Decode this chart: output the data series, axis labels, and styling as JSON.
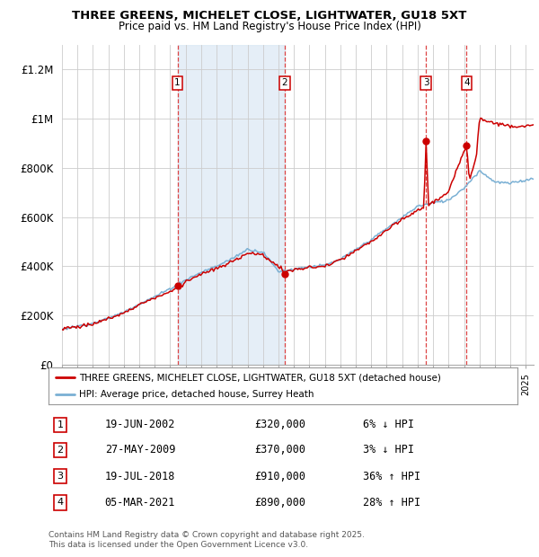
{
  "title_line1": "THREE GREENS, MICHELET CLOSE, LIGHTWATER, GU18 5XT",
  "title_line2": "Price paid vs. HM Land Registry's House Price Index (HPI)",
  "background_color": "#ffffff",
  "plot_bg_color": "#ffffff",
  "grid_color": "#cccccc",
  "shade_color": "#dae8f5",
  "ylim": [
    0,
    1300000
  ],
  "yticks": [
    0,
    200000,
    400000,
    600000,
    800000,
    1000000,
    1200000
  ],
  "ytick_labels": [
    "£0",
    "£200K",
    "£400K",
    "£600K",
    "£800K",
    "£1M",
    "£1.2M"
  ],
  "x_start_year": 1995,
  "x_end_year": 2025.5,
  "house_color": "#cc0000",
  "hpi_color": "#7ab0d4",
  "sale_dashed_color": "#dd4444",
  "legend_label_house": "THREE GREENS, MICHELET CLOSE, LIGHTWATER, GU18 5XT (detached house)",
  "legend_label_hpi": "HPI: Average price, detached house, Surrey Heath",
  "transactions": [
    {
      "num": 1,
      "date_dec": 2002.47,
      "price": 320000,
      "label": "19-JUN-2002",
      "price_str": "£320,000",
      "change": "6% ↓ HPI"
    },
    {
      "num": 2,
      "date_dec": 2009.41,
      "price": 370000,
      "label": "27-MAY-2009",
      "price_str": "£370,000",
      "change": "3% ↓ HPI"
    },
    {
      "num": 3,
      "date_dec": 2018.55,
      "price": 910000,
      "label": "19-JUL-2018",
      "price_str": "£910,000",
      "change": "36% ↑ HPI"
    },
    {
      "num": 4,
      "date_dec": 2021.17,
      "price": 890000,
      "label": "05-MAR-2021",
      "price_str": "£890,000",
      "change": "28% ↑ HPI"
    }
  ],
  "footnote": "Contains HM Land Registry data © Crown copyright and database right 2025.\nThis data is licensed under the Open Government Licence v3.0."
}
